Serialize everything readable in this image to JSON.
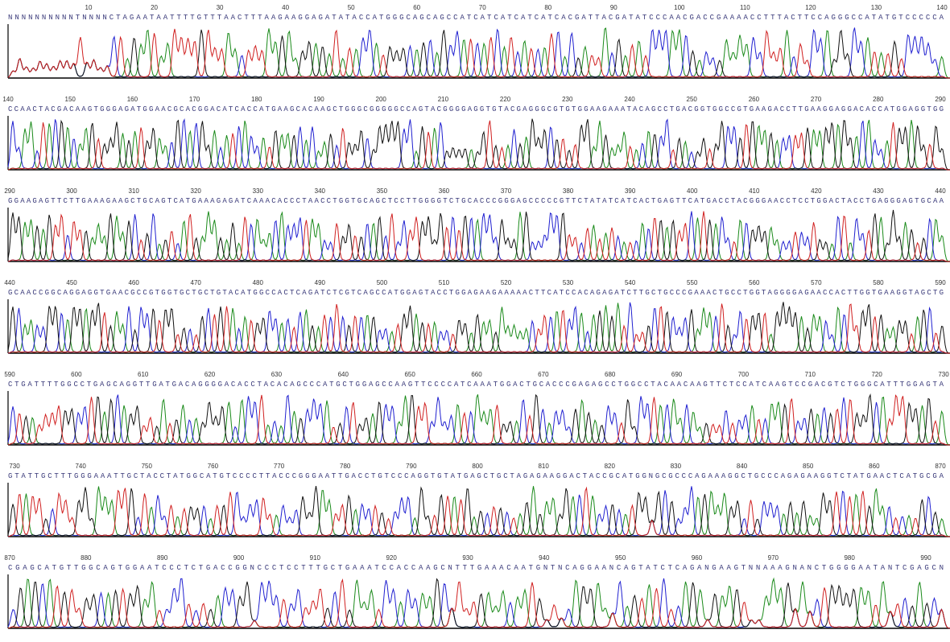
{
  "rows": [
    {
      "ticks": [
        "10",
        "20",
        "30",
        "40",
        "50",
        "60",
        "70",
        "80",
        "90",
        "100",
        "110",
        "120",
        "130",
        "140"
      ],
      "sequence": "NNNNNNNNNNTNNNNCTAGAATAATTTTGTTTAACTTTAAGAAGGAGATATACCATGGGCAGCAGCCATCATCATCATCATCACGATTACGATATCCCAACGACCGAAAACCTTTACTTCCAGGGCCATATGTCCCCCA"
    },
    {
      "ticks": [
        "140",
        "150",
        "160",
        "170",
        "180",
        "190",
        "200",
        "210",
        "220",
        "230",
        "240",
        "250",
        "260",
        "270",
        "280",
        "290"
      ],
      "sequence": "CCAACTACGACAAGTGGGAGATGGAACGCACGGACATCACCATGAAGCACAAGCTGGGCGGGGGCCAGTACGGGGAGGTGTACGAGGGCGTGTGGAAGAAATACAGCCTGACGGTGGCCGTGAAGACCTTGAAGGAGGACACCATGGAGGTGG"
    },
    {
      "ticks": [
        "290",
        "300",
        "310",
        "320",
        "330",
        "340",
        "350",
        "360",
        "370",
        "380",
        "390",
        "400",
        "410",
        "420",
        "430",
        "440"
      ],
      "sequence": "GGAAGAGTTCTTGAAAGAAGCTGCAGTCATGAAAGAGATCAAACACCCTAACCTGGTGCAGCTCCTTGGGGTCTGCACCCGGGAGCCCCCGTTCTATATCATCACTGAGTTCATGACCTACGGGAACCTCCTGGACTACCTGAGGGAGTGCAA"
    },
    {
      "ticks": [
        "440",
        "450",
        "460",
        "470",
        "480",
        "490",
        "500",
        "510",
        "520",
        "530",
        "540",
        "550",
        "560",
        "570",
        "580",
        "590"
      ],
      "sequence": "GCAACCGGCAGGAGGTGAACGCCGTGGTGCTGCTGTACATGGCCACTCAGATCTCGTCAGCCATGGAGTACCTGGAGAAGAAAAACTTCATCCACAGAGATCTTGCTGCCCGAAACTGCCTGGTAGGGGAGAACCACTTGGTGAAGGTAGCTG"
    },
    {
      "ticks": [
        "590",
        "600",
        "610",
        "620",
        "630",
        "640",
        "650",
        "660",
        "670",
        "680",
        "690",
        "700",
        "710",
        "720",
        "730"
      ],
      "sequence": "CTGATTTTGGCCTGAGCAGGTTGATGACAGGGGACACCTACACAGCCCATGCTGGAGCCAAGTTCCCCATCAAATGGACTGCACCCGAGAGCCTGGCCTACAACAAGTTCTCCATCAAGTCCGACGTCTGGGCATTTGGAGTA"
    },
    {
      "ticks": [
        "730",
        "740",
        "750",
        "760",
        "770",
        "780",
        "790",
        "800",
        "810",
        "820",
        "830",
        "840",
        "850",
        "860",
        "870"
      ],
      "sequence": "GTATTGCTTTGGGAAATTGCTACCTATGGCATGTCCCCTTACCCGGGAATTGACCTGTCCCAGGTGTATGAGCTGCTAGAGAAGGACTACCGCATGGNGCGCCCAGAAAGGCTGCCCAGAGAAGGTCTATGAACTCATGCGA"
    },
    {
      "ticks": [
        "870",
        "880",
        "890",
        "900",
        "910",
        "920",
        "930",
        "940",
        "950",
        "960",
        "970",
        "980",
        "990"
      ],
      "sequence": "CGAGCATGTTGGCAGTGGAATCCCTCTGACCGGNCCCTCCTTTGCTGAAATCCACCAAGCNTTTGAAACAATGNTNCAGGAANCAGTATCTCAGANGAAGTNNAAAGNANCTGGGGAATANTCGAGCN"
    }
  ]
}
